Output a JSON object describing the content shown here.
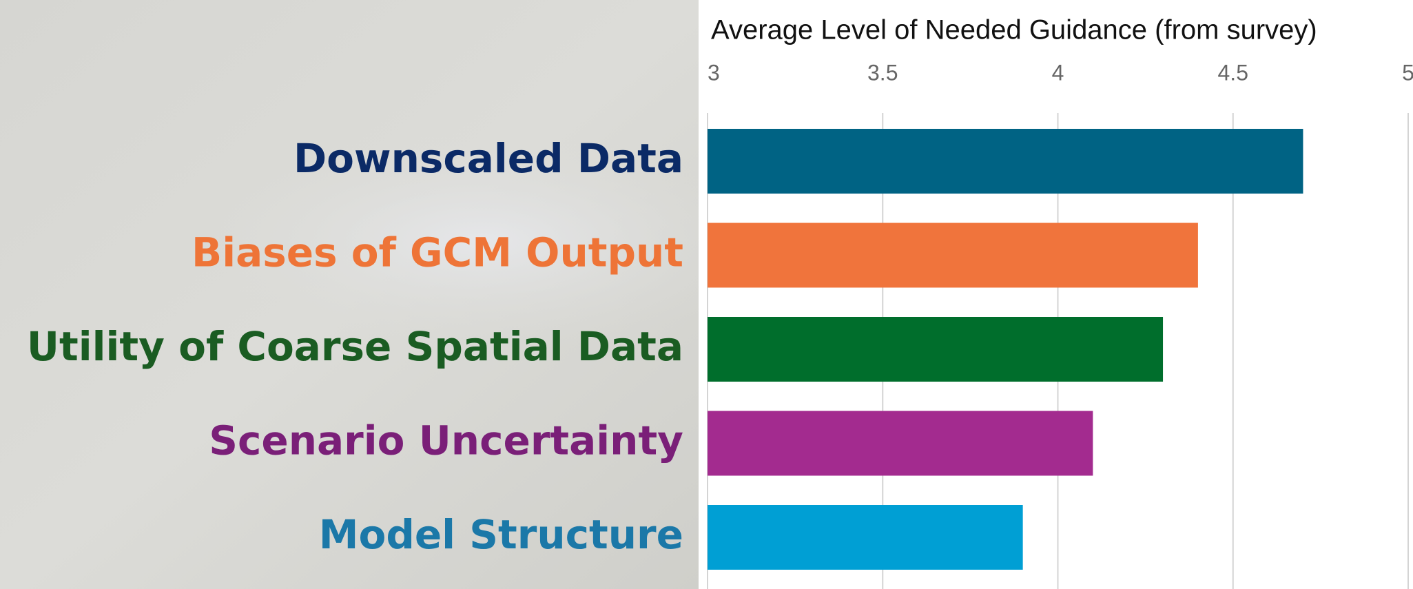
{
  "chart_data": {
    "type": "hbar",
    "title": "Average Level of Needed Guidance (from survey)",
    "categories": [
      "Downscaled Data",
      "Biases of GCM Output",
      "Utility of Coarse Spatial Data",
      "Scenario Uncertainty",
      "Model Structure"
    ],
    "values": [
      4.7,
      4.4,
      4.3,
      4.1,
      3.9
    ],
    "colors": [
      "#006384",
      "#f0743c",
      "#006e2c",
      "#a32b8f",
      "#009fd4"
    ],
    "label_colors": [
      "#0b2a66",
      "#ee7437",
      "#1a5c22",
      "#7a1f78",
      "#1b78a8"
    ],
    "xlim": [
      3,
      5
    ],
    "xticks": [
      3,
      3.5,
      4,
      4.5,
      5
    ],
    "grid": true
  }
}
